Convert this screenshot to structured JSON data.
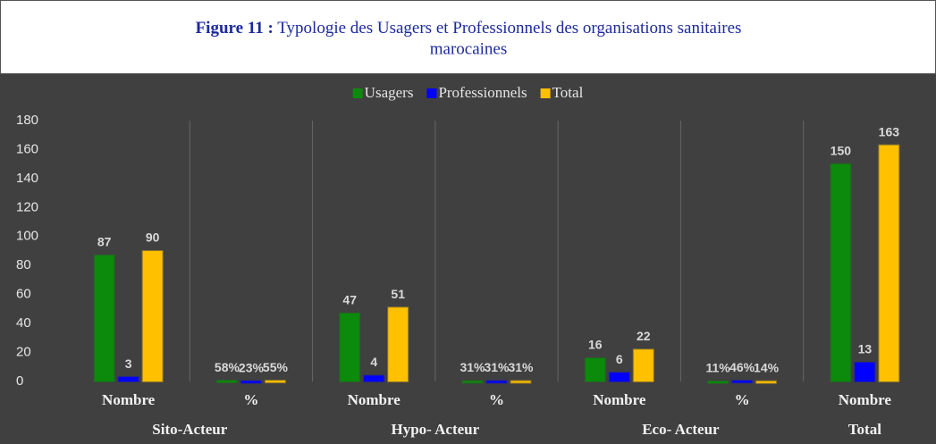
{
  "chart_data": {
    "type": "bar",
    "title_prefix": "Figure 11 :",
    "title_line1": "Typologie des Usagers et Professionnels des organisations sanitaires",
    "title_line2": "marocaines",
    "groups": [
      {
        "name": "Sito-Acteur",
        "categories": [
          "Nombre",
          "%"
        ]
      },
      {
        "name": "Hypo- Acteur",
        "categories": [
          "Nombre",
          "%"
        ]
      },
      {
        "name": "Eco- Acteur",
        "categories": [
          "Nombre",
          "%"
        ]
      },
      {
        "name": "Total",
        "categories": [
          "Nombre"
        ]
      }
    ],
    "series": [
      {
        "name": "Usagers",
        "color": "#0b8a0b",
        "values": [
          87,
          0.58,
          47,
          0.31,
          16,
          0.11,
          150
        ],
        "value_labels": [
          "87",
          "58%",
          "47",
          "31%",
          "16",
          "11%",
          "150"
        ]
      },
      {
        "name": "Professionnels",
        "color": "#0000ff",
        "values": [
          3,
          0.23,
          4,
          0.31,
          6,
          0.46,
          13
        ],
        "value_labels": [
          "3",
          "23%",
          "4",
          "31%",
          "6",
          "46%",
          "13"
        ]
      },
      {
        "name": "Total",
        "color": "#ffc000",
        "values": [
          90,
          0.55,
          51,
          0.31,
          22,
          0.14,
          163
        ],
        "value_labels": [
          "90",
          "55%",
          "51",
          "31%",
          "22",
          "14%",
          "163"
        ]
      }
    ],
    "ylim": [
      0,
      180
    ],
    "yticks": [
      0,
      20,
      40,
      60,
      80,
      100,
      120,
      140,
      160,
      180
    ],
    "legend": "top"
  }
}
